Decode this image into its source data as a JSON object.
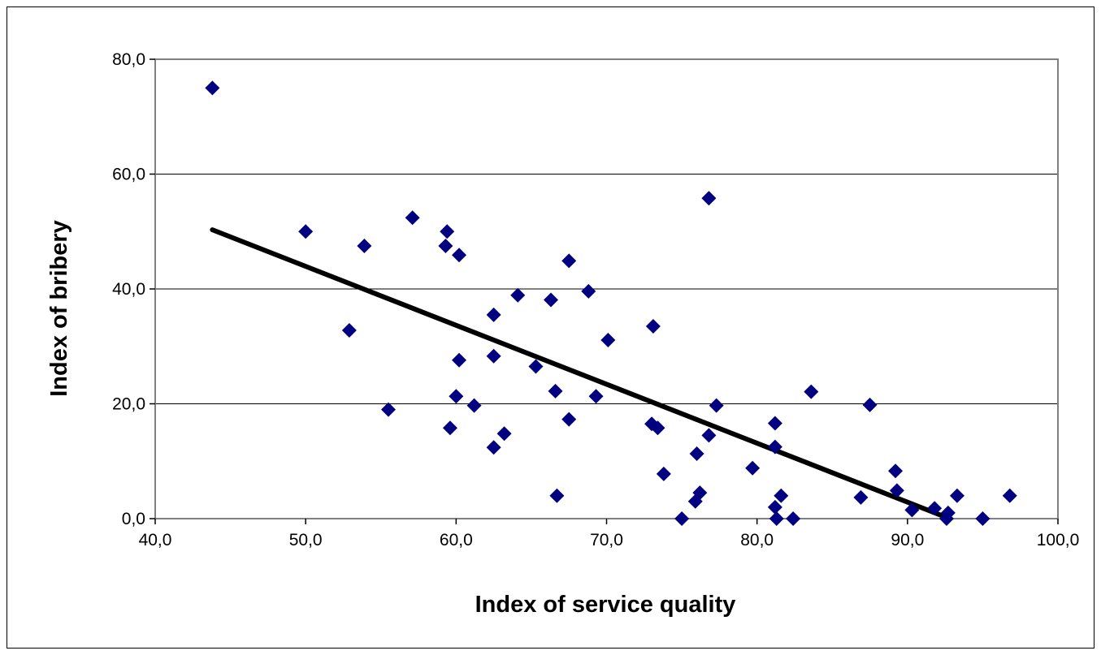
{
  "chart_data": {
    "type": "scatter",
    "title": "",
    "xlabel": "Index of service quality",
    "ylabel": "Index of bribery",
    "xlim": [
      40,
      100
    ],
    "ylim": [
      0,
      80
    ],
    "x_ticks": [
      40,
      50,
      60,
      70,
      80,
      90,
      100
    ],
    "y_ticks": [
      0,
      20,
      40,
      60,
      80
    ],
    "x_tick_labels": [
      "40,0",
      "50,0",
      "60,0",
      "70,0",
      "80,0",
      "90,0",
      "100,0"
    ],
    "y_tick_labels": [
      "0,0",
      "20,0",
      "40,0",
      "60,0",
      "80,0"
    ],
    "grid": "horizontal",
    "legend": "none",
    "marker": "diamond",
    "marker_color": "#000080",
    "trend_color": "#000000",
    "series": [
      {
        "points": [
          [
            43.8,
            75.0
          ],
          [
            50.0,
            50.0
          ],
          [
            52.9,
            32.8
          ],
          [
            53.9,
            47.5
          ],
          [
            55.5,
            19.0
          ],
          [
            57.1,
            52.4
          ],
          [
            59.3,
            47.5
          ],
          [
            59.4,
            50.0
          ],
          [
            59.6,
            15.8
          ],
          [
            60.0,
            21.3
          ],
          [
            60.2,
            27.6
          ],
          [
            60.2,
            45.9
          ],
          [
            61.2,
            19.7
          ],
          [
            62.5,
            35.5
          ],
          [
            62.5,
            28.3
          ],
          [
            62.5,
            12.4
          ],
          [
            63.2,
            14.8
          ],
          [
            64.1,
            38.9
          ],
          [
            65.3,
            26.5
          ],
          [
            66.3,
            38.1
          ],
          [
            66.6,
            22.2
          ],
          [
            66.7,
            4.0
          ],
          [
            67.5,
            44.9
          ],
          [
            67.5,
            17.3
          ],
          [
            68.8,
            39.6
          ],
          [
            69.3,
            21.3
          ],
          [
            70.1,
            31.1
          ],
          [
            73.0,
            16.5
          ],
          [
            73.1,
            33.5
          ],
          [
            73.4,
            15.8
          ],
          [
            73.8,
            7.8
          ],
          [
            75.0,
            0.0
          ],
          [
            75.9,
            3.0
          ],
          [
            76.0,
            11.3
          ],
          [
            76.2,
            4.5
          ],
          [
            76.8,
            55.8
          ],
          [
            76.8,
            14.5
          ],
          [
            77.3,
            19.7
          ],
          [
            79.7,
            8.8
          ],
          [
            81.2,
            16.6
          ],
          [
            81.2,
            12.5
          ],
          [
            81.2,
            2.0
          ],
          [
            81.3,
            0.0
          ],
          [
            81.6,
            4.0
          ],
          [
            82.4,
            0.0
          ],
          [
            83.6,
            22.1
          ],
          [
            86.9,
            3.7
          ],
          [
            87.5,
            19.8
          ],
          [
            89.2,
            8.3
          ],
          [
            89.3,
            4.9
          ],
          [
            90.3,
            1.5
          ],
          [
            91.8,
            1.8
          ],
          [
            92.6,
            0.0
          ],
          [
            92.7,
            1.0
          ],
          [
            93.3,
            4.0
          ],
          [
            95.0,
            0.0
          ],
          [
            96.8,
            4.0
          ]
        ]
      }
    ],
    "trendline": {
      "x": [
        43.8,
        92.8
      ],
      "y": [
        50.3,
        0.0
      ]
    }
  }
}
